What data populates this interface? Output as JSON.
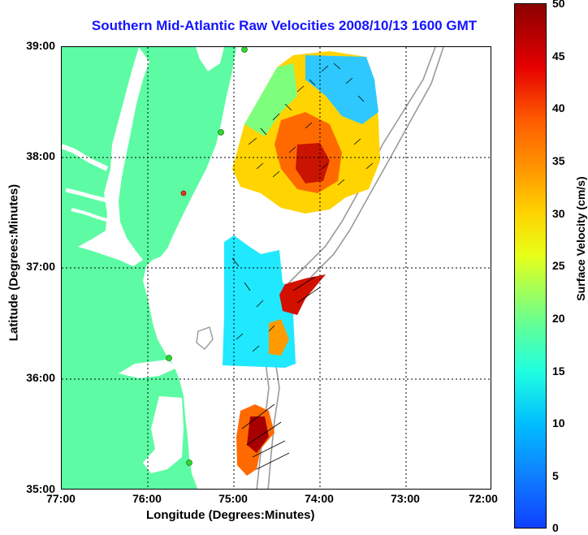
{
  "title": "Southern Mid-Atlantic Raw Velocities 2008/10/13 1600 GMT",
  "x_axis": {
    "label": "Longitude (Degrees:Minutes)",
    "ticks": [
      "77:00",
      "76:00",
      "75:00",
      "74:00",
      "73:00",
      "72:00"
    ]
  },
  "y_axis": {
    "label": "Latitude (Degrees:Minutes)",
    "ticks": [
      "39:00",
      "38:00",
      "37:00",
      "36:00",
      "35:00"
    ]
  },
  "colorbar": {
    "label": "Surface Velocity (cm/s)",
    "ticks": [
      "50",
      "45",
      "40",
      "35",
      "30",
      "25",
      "20",
      "15",
      "10",
      "5",
      "0"
    ],
    "range": [
      0,
      50
    ]
  },
  "colors": {
    "land": "#5dfca4",
    "title": "#1414ff",
    "station": "#2fd82f",
    "station_alt": "#e23a1a"
  },
  "map": {
    "lon_range": [
      -77,
      -72
    ],
    "lat_range": [
      35,
      39
    ],
    "grid": true,
    "stations": 6
  }
}
